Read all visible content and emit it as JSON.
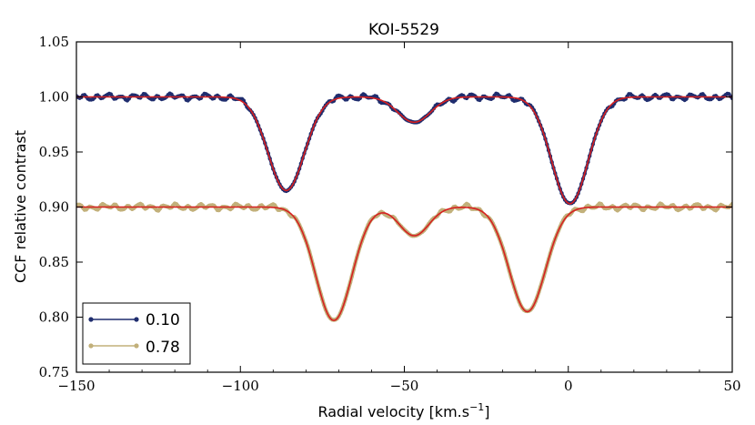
{
  "chart_data": {
    "type": "line",
    "title": "KOI-5529",
    "xlabel": "Radial velocity [km.s",
    "xlabel_sup": "−1",
    "xlabel_end": "]",
    "ylabel": "CCF relative contrast",
    "xlim": [
      -150,
      50
    ],
    "ylim": [
      0.75,
      1.05
    ],
    "xticks": [
      -150,
      -100,
      -50,
      0,
      50
    ],
    "xtick_labels": [
      "−150",
      "−100",
      "−50",
      "0",
      "50"
    ],
    "yticks": [
      0.75,
      0.8,
      0.85,
      0.9,
      0.95,
      1.0,
      1.05
    ],
    "ytick_labels": [
      "0.75",
      "0.80",
      "0.85",
      "0.90",
      "0.95",
      "1.00",
      "1.05"
    ],
    "grid": false,
    "legend_position": "bottom-left",
    "series": [
      {
        "name": "0.10",
        "color": "#1f2d6e",
        "marker": "circle",
        "baseline": 1.0,
        "dips": [
          {
            "center": -86,
            "depth": 0.085,
            "sigma": 5.5
          },
          {
            "center": -47,
            "depth": 0.023,
            "sigma": 5.0
          },
          {
            "center": 0.5,
            "depth": 0.097,
            "sigma": 5.5
          }
        ],
        "noise": 0.0035
      },
      {
        "name": "0.78",
        "color": "#c2b07a",
        "marker": "circle",
        "baseline": 0.9,
        "dips": [
          {
            "center": -71.5,
            "depth": 0.103,
            "sigma": 5.5
          },
          {
            "center": -47,
            "depth": 0.026,
            "sigma": 4.5
          },
          {
            "center": -12.5,
            "depth": 0.095,
            "sigma": 5.5
          }
        ],
        "noise": 0.0035
      }
    ],
    "fit_color": "#d62020"
  }
}
